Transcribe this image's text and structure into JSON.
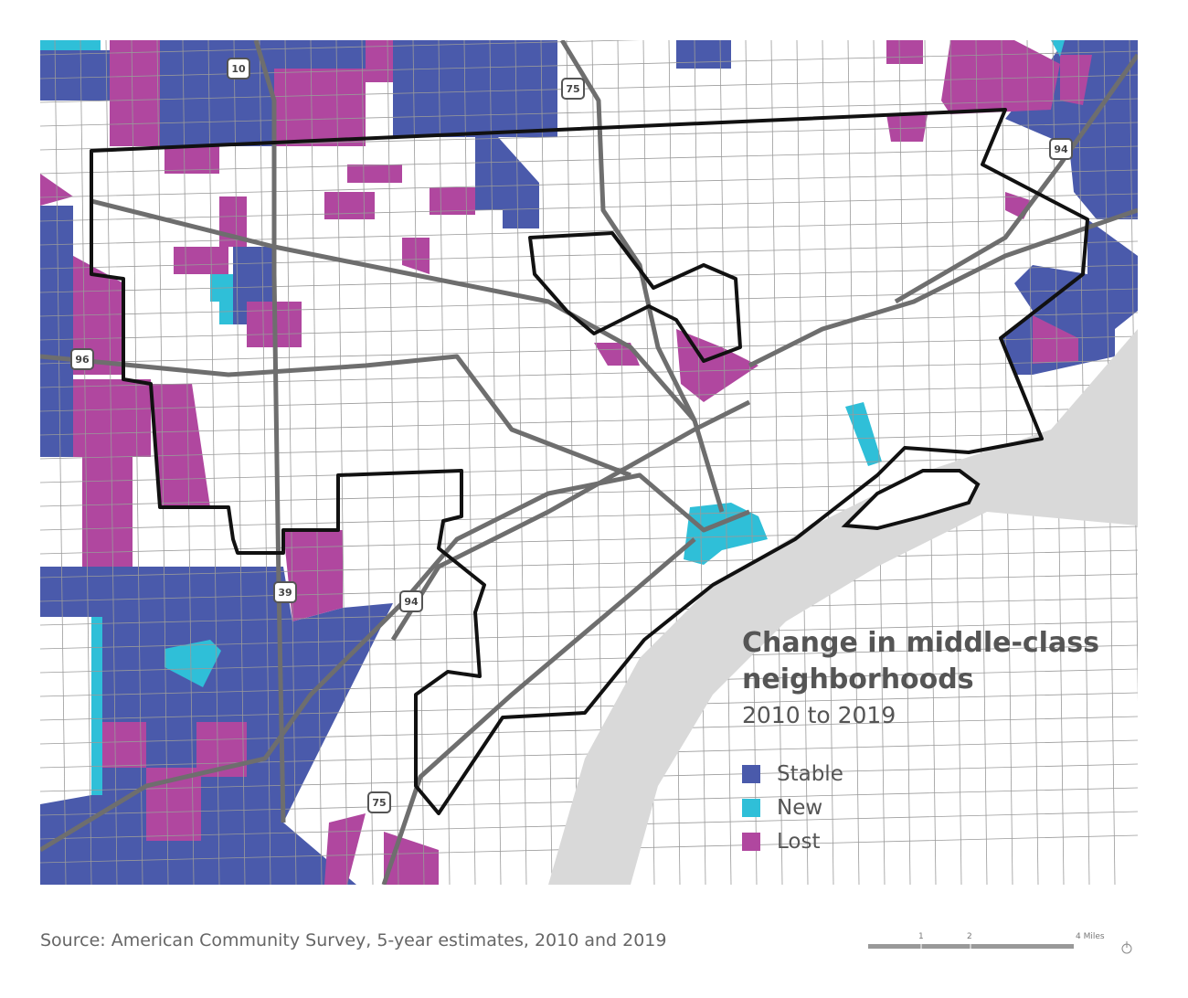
{
  "map": {
    "title": "Change in middle-class neighborhoods",
    "subtitle": "2010 to 2019",
    "legend": [
      {
        "label": "Stable",
        "color": "#4a5aab"
      },
      {
        "label": "New",
        "color": "#2fbfd8"
      },
      {
        "label": "Lost",
        "color": "#b0479f"
      }
    ],
    "highways": [
      "10",
      "75",
      "94",
      "96",
      "39",
      "94",
      "75"
    ],
    "scale": {
      "ticks": [
        "1",
        "2",
        "4 Miles"
      ]
    }
  },
  "source": "Source: American Community Survey, 5-year estimates, 2010 and 2019"
}
